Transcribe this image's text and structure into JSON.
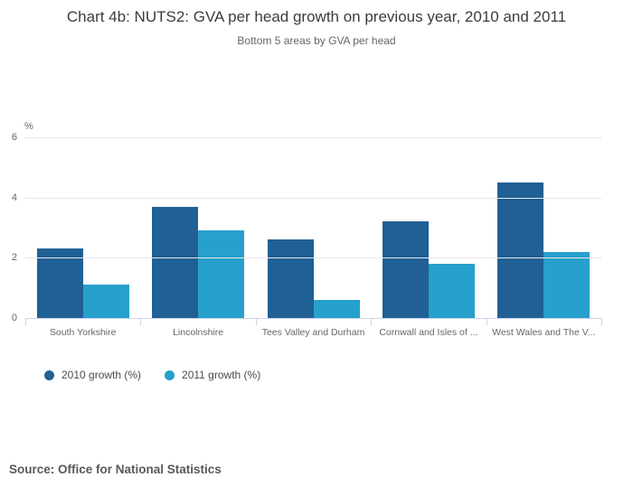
{
  "header": {
    "title": "Chart 4b: NUTS2: GVA per head growth on previous year, 2010 and 2011",
    "subtitle": "Bottom 5 areas by GVA per head"
  },
  "chart_data": {
    "type": "bar",
    "title": "Chart 4b: NUTS2: GVA per head growth on previous year, 2010 and 2011",
    "subtitle": "Bottom 5 areas by GVA per head",
    "unit_label": "%",
    "categories": [
      "South Yorkshire",
      "Lincolnshire",
      "Tees Valley and Durham",
      "Cornwall and Isles of ...",
      "West Wales and The V..."
    ],
    "series": [
      {
        "name": "2010 growth (%)",
        "color": "#206095",
        "values": [
          2.3,
          3.7,
          2.6,
          3.2,
          4.5
        ]
      },
      {
        "name": "2011 growth (%)",
        "color": "#27a0cc",
        "values": [
          1.1,
          2.9,
          0.6,
          1.8,
          2.2
        ]
      }
    ],
    "ylim": [
      0,
      6
    ],
    "yticks": [
      0,
      2,
      4,
      6
    ],
    "grid": true,
    "legend_position": "bottom-left",
    "colors": {
      "axis_line": "#ccd6eb",
      "gridline": "#e6e6e6",
      "label_text": "#666666"
    }
  },
  "footer": {
    "source": "Source: Office for National Statistics"
  }
}
